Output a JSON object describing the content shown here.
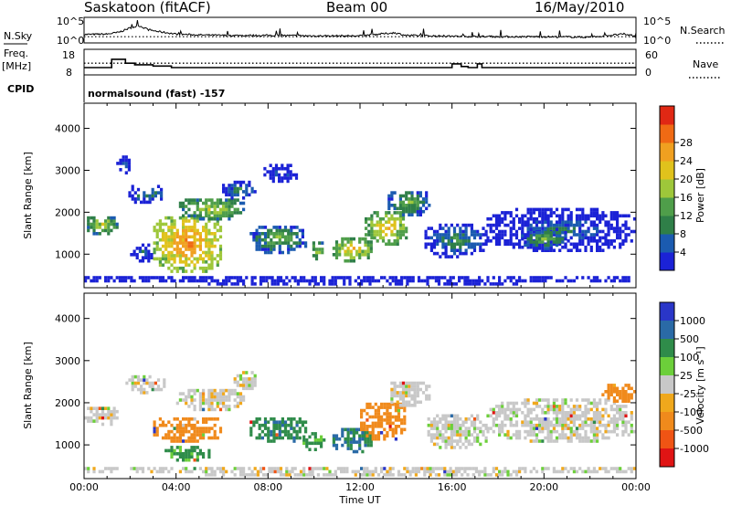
{
  "header": {
    "station": "Saskatoon (fitACF)",
    "beam": "Beam 00",
    "date": "16/May/2010"
  },
  "chart_data": [
    {
      "type": "line",
      "panel": "noise",
      "left_label": "N.Sky",
      "left_ticks": [
        "10^5",
        "10^0"
      ],
      "right_label": "N.Search",
      "right_ticks": [
        "10^5",
        "10^0"
      ],
      "series": [
        {
          "name": "N.Sky",
          "style": "solid"
        },
        {
          "name": "N.Search",
          "style": "dotted"
        }
      ],
      "x": [
        0,
        1,
        1.5,
        2,
        2.4,
        2.8,
        3.2,
        4,
        5,
        6,
        8,
        10,
        12,
        13.5,
        14,
        16,
        18,
        20,
        22,
        23.5,
        24
      ],
      "values_log10": [
        1.5,
        1.6,
        2.0,
        3.0,
        3.5,
        2.6,
        2.2,
        1.6,
        1.4,
        1.3,
        1.3,
        1.2,
        1.2,
        1.9,
        1.3,
        1.1,
        1.0,
        1.0,
        0.9,
        1.6,
        1.0
      ]
    },
    {
      "type": "line",
      "panel": "frequency",
      "left_label_line1": "Freq.",
      "left_label_line2": "[MHz]",
      "left_ticks": [
        "18",
        "8"
      ],
      "right_label": "Nave",
      "right_ticks": [
        "60",
        "0"
      ],
      "series": [
        {
          "name": "Freq.",
          "style": "solid",
          "x": [
            0,
            1.2,
            1.2,
            1.8,
            1.8,
            2.2,
            2.2,
            3,
            3,
            3.8,
            3.8,
            16,
            16,
            16.4,
            16.4,
            16.7,
            16.7,
            17.1,
            17.1,
            17.3,
            17.3,
            24
          ],
          "y": [
            10.5,
            10.5,
            14.3,
            14.3,
            12.5,
            12.5,
            11.8,
            11.8,
            11.2,
            11.2,
            10.5,
            10.5,
            12.2,
            12.2,
            11.0,
            11.0,
            10.5,
            10.5,
            12.2,
            12.2,
            10.5,
            10.5
          ]
        },
        {
          "name": "Nave",
          "style": "dotted",
          "y_const": 27
        }
      ],
      "cpid_label": "CPID",
      "cpid_text": "normalsound (fast) -157"
    },
    {
      "type": "heatmap",
      "panel": "power",
      "ylabel": "Slant Range [km]",
      "yticks": [
        1000,
        2000,
        3000,
        4000
      ],
      "ylim": [
        200,
        4600
      ],
      "xlim": [
        0,
        24
      ],
      "colorbar_label": "Power [dB]",
      "colorbar_ticks": [
        "4",
        "8",
        "12",
        "16",
        "20",
        "24",
        "28"
      ],
      "colors": [
        "#1b22d6",
        "#1b5bb0",
        "#2f7f48",
        "#4f9e4a",
        "#9ec73a",
        "#e0c21c",
        "#f0a020",
        "#f06a14",
        "#e02814"
      ],
      "blobs": [
        {
          "t0": 0.0,
          "t1": 1.5,
          "r0": 1450,
          "r1": 1900,
          "power": 20
        },
        {
          "t0": 1.4,
          "t1": 2.0,
          "r0": 2900,
          "r1": 3300,
          "power": 8
        },
        {
          "t0": 1.8,
          "t1": 3.5,
          "r0": 2200,
          "r1": 2600,
          "power": 10
        },
        {
          "t0": 2.0,
          "t1": 3.0,
          "r0": 800,
          "r1": 1200,
          "power": 6
        },
        {
          "t0": 3.0,
          "t1": 6.0,
          "r0": 550,
          "r1": 1900,
          "power": 26
        },
        {
          "t0": 4.0,
          "t1": 7.0,
          "r0": 1800,
          "r1": 2300,
          "power": 18
        },
        {
          "t0": 6.0,
          "t1": 7.5,
          "r0": 2300,
          "r1": 2700,
          "power": 10
        },
        {
          "t0": 7.2,
          "t1": 9.6,
          "r0": 1000,
          "r1": 1650,
          "power": 14
        },
        {
          "t0": 7.8,
          "t1": 9.2,
          "r0": 2700,
          "r1": 3100,
          "power": 8
        },
        {
          "t0": 9.8,
          "t1": 10.4,
          "r0": 850,
          "r1": 1250,
          "power": 18
        },
        {
          "t0": 10.8,
          "t1": 12.5,
          "r0": 800,
          "r1": 1350,
          "power": 22
        },
        {
          "t0": 12.2,
          "t1": 14.0,
          "r0": 1200,
          "r1": 2000,
          "power": 24
        },
        {
          "t0": 13.2,
          "t1": 15.0,
          "r0": 1900,
          "r1": 2500,
          "power": 16
        },
        {
          "t0": 14.8,
          "t1": 17.5,
          "r0": 900,
          "r1": 1700,
          "power": 12
        },
        {
          "t0": 17.5,
          "t1": 24.0,
          "r0": 1050,
          "r1": 2050,
          "power": 9
        },
        {
          "t0": 19.0,
          "t1": 21.0,
          "r0": 1100,
          "r1": 1600,
          "power": 16
        },
        {
          "t0": 0.0,
          "t1": 24.0,
          "r0": 250,
          "r1": 450,
          "power": 5
        }
      ]
    },
    {
      "type": "heatmap",
      "panel": "velocity",
      "ylabel": "Slant Range [km]",
      "yticks": [
        1000,
        2000,
        3000,
        4000
      ],
      "ylim": [
        200,
        4600
      ],
      "xlim": [
        0,
        24
      ],
      "xticks": [
        "00:00",
        "04:00",
        "08:00",
        "12:00",
        "16:00",
        "20:00",
        "00:00"
      ],
      "xlabel": "Time UT",
      "colorbar_label": "Velocity [m s⁻¹]",
      "colorbar_ticks": [
        "1000",
        "500",
        "100",
        "25",
        "-25",
        "-100",
        "-500",
        "-1000"
      ],
      "colors": [
        "#2a36c8",
        "#2a6aa6",
        "#2f8c4a",
        "#6ccf3a",
        "#c8c8c8",
        "#f0a81c",
        "#f08a1c",
        "#f05414",
        "#e01414"
      ],
      "blobs": [
        {
          "t0": 0.0,
          "t1": 1.5,
          "r0": 1450,
          "r1": 1900,
          "vel": 0
        },
        {
          "t0": 1.8,
          "t1": 3.5,
          "r0": 2200,
          "r1": 2600,
          "vel": 0
        },
        {
          "t0": 3.0,
          "t1": 6.0,
          "r0": 1050,
          "r1": 1650,
          "vel": -200
        },
        {
          "t0": 3.5,
          "t1": 5.5,
          "r0": 600,
          "r1": 950,
          "vel": 60
        },
        {
          "t0": 4.0,
          "t1": 7.0,
          "r0": 1800,
          "r1": 2300,
          "vel": 0
        },
        {
          "t0": 6.5,
          "t1": 7.5,
          "r0": 2300,
          "r1": 2700,
          "vel": 0
        },
        {
          "t0": 7.2,
          "t1": 9.6,
          "r0": 1050,
          "r1": 1650,
          "vel": 80
        },
        {
          "t0": 9.5,
          "t1": 10.5,
          "r0": 850,
          "r1": 1250,
          "vel": 60
        },
        {
          "t0": 10.8,
          "t1": 12.5,
          "r0": 800,
          "r1": 1350,
          "vel": 100
        },
        {
          "t0": 12.0,
          "t1": 14.0,
          "r0": 1100,
          "r1": 2000,
          "vel": -150
        },
        {
          "t0": 13.2,
          "t1": 15.0,
          "r0": 1900,
          "r1": 2500,
          "vel": 0
        },
        {
          "t0": 14.8,
          "t1": 17.5,
          "r0": 900,
          "r1": 1700,
          "vel": 0
        },
        {
          "t0": 17.5,
          "t1": 24.0,
          "r0": 1050,
          "r1": 2050,
          "vel": 0
        },
        {
          "t0": 22.5,
          "t1": 24.0,
          "r0": 2000,
          "r1": 2400,
          "vel": -200
        },
        {
          "t0": 0.0,
          "t1": 24.0,
          "r0": 250,
          "r1": 450,
          "vel": 0
        }
      ]
    }
  ]
}
